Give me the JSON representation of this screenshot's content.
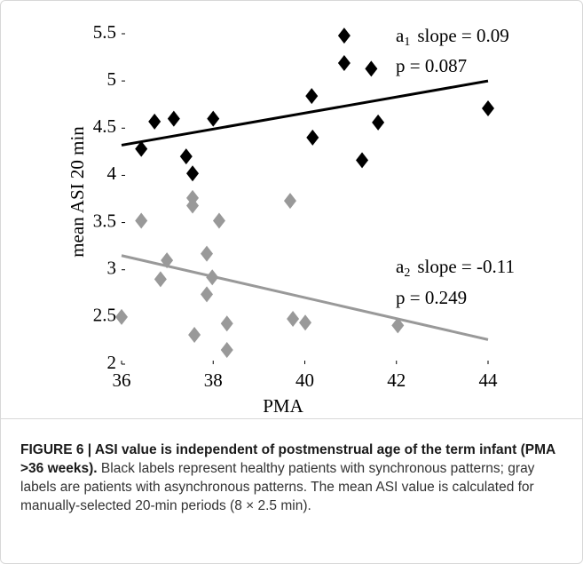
{
  "chart_data": {
    "type": "scatter",
    "xlabel": "PMA",
    "ylabel": "mean ASI 20 min",
    "xlim": [
      36,
      44
    ],
    "xticks": [
      36,
      38,
      40,
      42,
      44
    ],
    "ylim": [
      2,
      5.5
    ],
    "yticks": [
      2,
      2.5,
      3,
      3.5,
      4,
      4.5,
      5,
      5.5
    ],
    "series": [
      {
        "color": "#000000",
        "x": [
          36.43,
          36.72,
          37.14,
          37.41,
          37.55,
          38.0,
          40.15,
          40.17,
          40.86,
          40.86,
          41.25,
          41.45,
          41.6,
          44.0
        ],
        "values": [
          4.28,
          4.57,
          4.6,
          4.2,
          4.02,
          4.6,
          4.84,
          4.4,
          5.48,
          5.19,
          4.16,
          5.13,
          4.56,
          4.71
        ],
        "fit_x": [
          36,
          44
        ],
        "fit_values": [
          4.32,
          5.0
        ]
      },
      {
        "color": "#999999",
        "x": [
          36.0,
          36.43,
          36.99,
          36.85,
          37.55,
          37.55,
          37.59,
          37.86,
          37.86,
          37.98,
          38.13,
          38.3,
          38.3,
          39.68,
          39.74,
          40.01,
          42.03
        ],
        "values": [
          2.5,
          3.52,
          3.1,
          2.9,
          3.76,
          3.68,
          2.31,
          3.17,
          2.74,
          2.92,
          3.52,
          2.43,
          2.15,
          3.73,
          2.48,
          2.44,
          2.41
        ],
        "fit_x": [
          36,
          44
        ],
        "fit_values": [
          3.15,
          2.26
        ]
      }
    ],
    "annotations": [
      {
        "symbol": "a",
        "subscript": "1",
        "text": "slope = 0.09",
        "p": "p = 0.087"
      },
      {
        "symbol": "a",
        "subscript": "2",
        "text": "slope = -0.11",
        "p": "p = 0.249"
      }
    ]
  },
  "caption": {
    "title": "FIGURE 6 | ASI value is independent of postmenstrual age of the term infant (PMA >36 weeks).",
    "body": "Black labels represent healthy patients with synchronous patterns; gray labels are patients with asynchronous patterns. The mean ASI value is calculated for manually-selected 20-min periods (8 × 2.5 min)."
  }
}
